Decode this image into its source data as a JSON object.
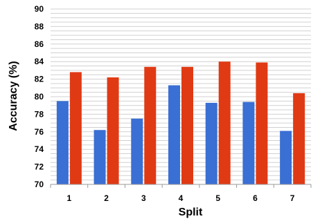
{
  "chart_data": {
    "type": "bar",
    "title": "",
    "xlabel": "Split",
    "ylabel": "Accuracy (%)",
    "categories": [
      "1",
      "2",
      "3",
      "4",
      "5",
      "6",
      "7"
    ],
    "ylim": [
      70,
      90
    ],
    "yticks": [
      "70",
      "72",
      "74",
      "76",
      "78",
      "80",
      "82",
      "84",
      "86",
      "88",
      "90"
    ],
    "grid": true,
    "legend": "none",
    "series": [
      {
        "color": "#3a6fd4",
        "values": [
          79.5,
          76.2,
          77.5,
          81.3,
          79.3,
          79.4,
          76.1
        ]
      },
      {
        "color": "#e03a14",
        "values": [
          82.8,
          82.2,
          83.4,
          83.4,
          84.0,
          83.9,
          80.4
        ]
      }
    ]
  }
}
